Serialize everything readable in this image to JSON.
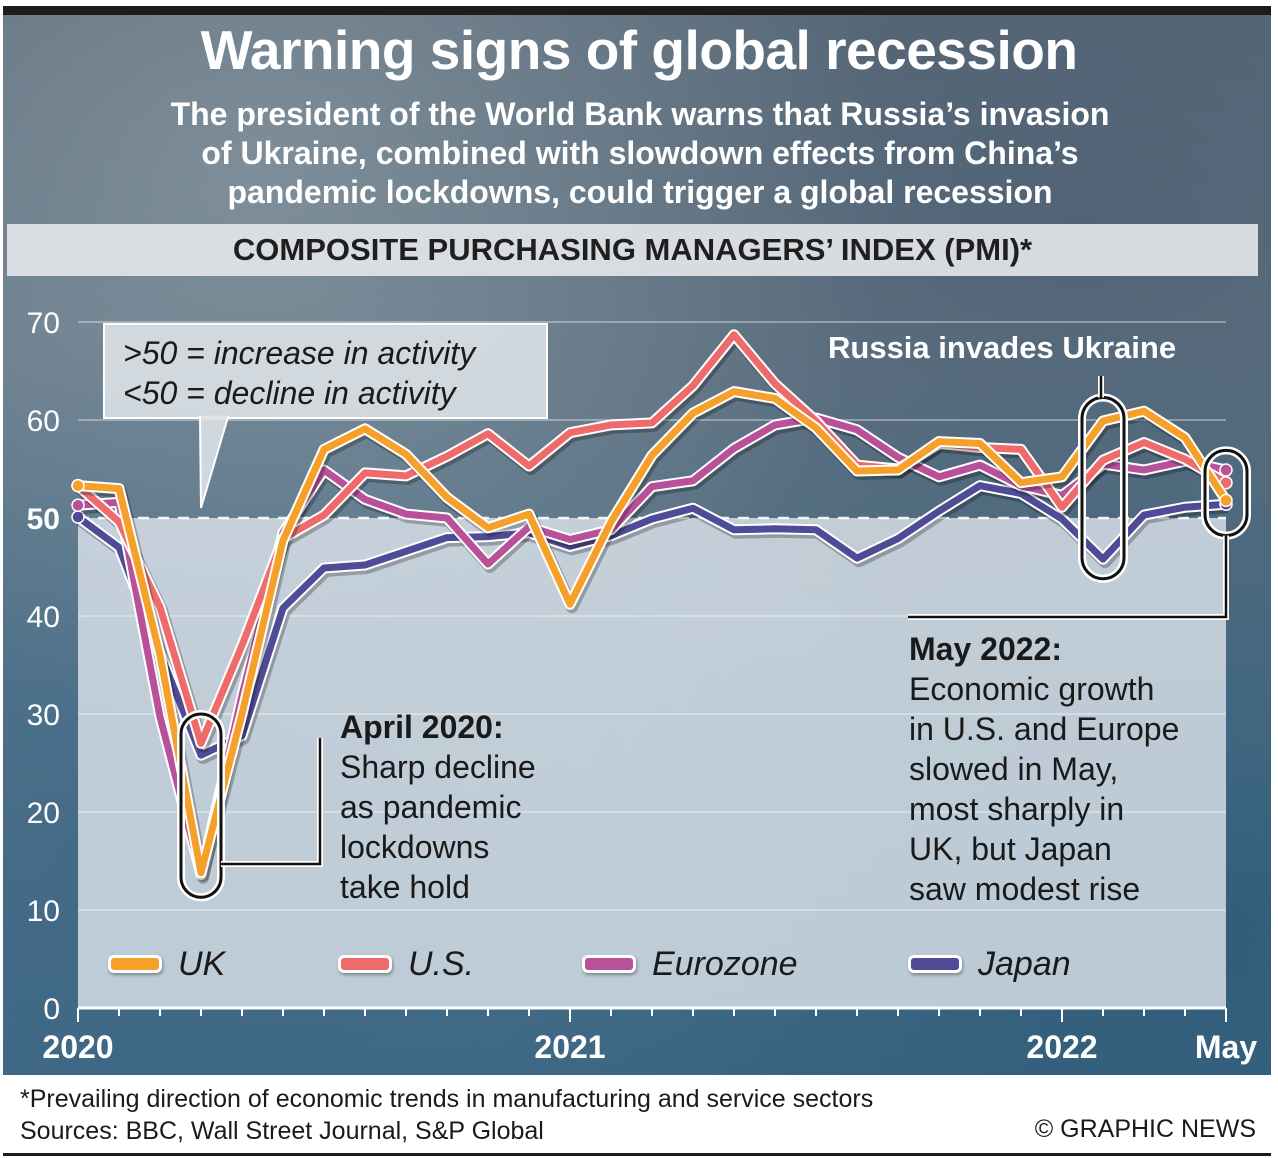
{
  "header": {
    "title": "Warning signs of global recession",
    "subtitle_lines": [
      "The president of the World Bank warns that Russia’s invasion",
      "of Ukraine, combined with slowdown effects from China’s",
      "pandemic lockdowns, could trigger a global recession"
    ],
    "section_label": "COMPOSITE PURCHASING MANAGERS’ INDEX (PMI)*"
  },
  "callout": {
    "line1": ">50 = increase in activity",
    "line2": "<50 = decline in activity"
  },
  "annotations": {
    "russia": "Russia invades Ukraine",
    "april_title": "April 2020:",
    "april_lines": [
      "Sharp decline",
      "as pandemic",
      "lockdowns",
      "take hold"
    ],
    "may_title": "May 2022:",
    "may_lines": [
      "Economic growth",
      "in U.S. and Europe",
      "slowed in May,",
      "most sharply in",
      "UK, but Japan",
      "saw modest rise"
    ]
  },
  "footer": {
    "note": "*Prevailing direction of economic trends in manufacturing and service sectors",
    "sources": "Sources: BBC, Wall Street Journal, S&P Global",
    "credit": "© GRAPHIC NEWS"
  },
  "chart_data": {
    "type": "line",
    "title": "COMPOSITE PURCHASING MANAGERS’ INDEX (PMI)*",
    "xlabel": "",
    "ylabel": "",
    "ylim": [
      0,
      70
    ],
    "yticks": [
      0,
      10,
      20,
      30,
      40,
      50,
      60,
      70
    ],
    "reference_line": 50,
    "grid": true,
    "legend": "bottom",
    "x": [
      "Jan 2020",
      "Feb 2020",
      "Mar 2020",
      "Apr 2020",
      "May 2020",
      "Jun 2020",
      "Jul 2020",
      "Aug 2020",
      "Sep 2020",
      "Oct 2020",
      "Nov 2020",
      "Dec 2020",
      "Jan 2021",
      "Feb 2021",
      "Mar 2021",
      "Apr 2021",
      "May 2021",
      "Jun 2021",
      "Jul 2021",
      "Aug 2021",
      "Sep 2021",
      "Oct 2021",
      "Nov 2021",
      "Dec 2021",
      "Jan 2022",
      "Feb 2022",
      "Mar 2022",
      "Apr 2022",
      "May 2022"
    ],
    "xtick_labels": [
      {
        "index": 0,
        "label": "2020"
      },
      {
        "index": 12,
        "label": "2021"
      },
      {
        "index": 24,
        "label": "2022"
      },
      {
        "index": 28,
        "label": "May"
      }
    ],
    "series": [
      {
        "name": "UK",
        "color": "#f5a02a",
        "values": [
          53.3,
          53.0,
          36.0,
          13.8,
          30.0,
          47.7,
          57.0,
          59.1,
          56.5,
          52.1,
          49.0,
          50.4,
          41.2,
          49.6,
          56.4,
          60.7,
          62.9,
          62.2,
          59.2,
          54.8,
          54.9,
          57.8,
          57.6,
          53.6,
          54.2,
          59.9,
          60.9,
          58.2,
          51.8
        ]
      },
      {
        "name": "U.S.",
        "color": "#ef6b6b",
        "values": [
          53.3,
          49.6,
          40.9,
          27.0,
          37.0,
          47.9,
          50.3,
          54.6,
          54.3,
          56.3,
          58.6,
          55.3,
          58.7,
          59.5,
          59.7,
          63.5,
          68.7,
          63.7,
          59.9,
          55.4,
          55.0,
          57.6,
          57.2,
          57.0,
          51.1,
          55.9,
          57.7,
          56.0,
          53.6
        ]
      },
      {
        "name": "Eurozone",
        "color": "#b8509a",
        "values": [
          51.3,
          51.6,
          29.7,
          13.6,
          31.9,
          48.5,
          54.9,
          51.9,
          50.4,
          50.0,
          45.3,
          49.1,
          47.8,
          48.8,
          53.2,
          53.8,
          57.1,
          59.5,
          60.2,
          59.0,
          56.2,
          54.2,
          55.4,
          53.3,
          52.3,
          55.5,
          54.9,
          55.8,
          54.9
        ]
      },
      {
        "name": "Japan",
        "color": "#4f4b96",
        "values": [
          50.1,
          47.0,
          36.2,
          25.8,
          27.8,
          40.8,
          44.9,
          45.2,
          46.6,
          48.0,
          48.1,
          48.5,
          47.1,
          48.2,
          49.9,
          51.0,
          48.8,
          48.9,
          48.8,
          45.9,
          47.9,
          50.7,
          53.3,
          52.5,
          49.9,
          45.8,
          50.3,
          51.1,
          51.4
        ]
      }
    ]
  }
}
